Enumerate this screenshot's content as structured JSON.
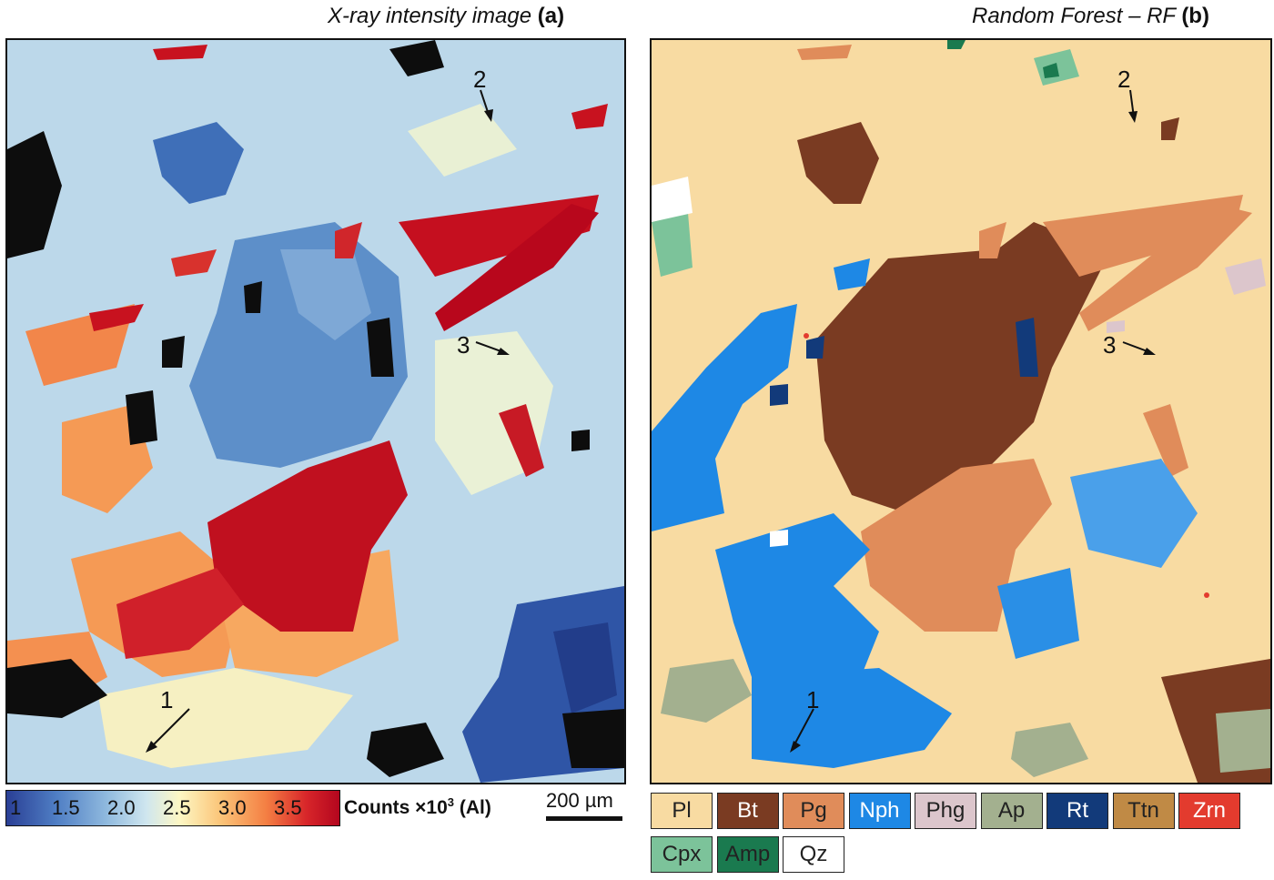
{
  "panel_a": {
    "title_text": "X-ray intensity image",
    "letter": "(a)",
    "annotations": [
      "1",
      "2",
      "3"
    ],
    "colorbar": {
      "ticks": [
        "1",
        "1.5",
        "2.0",
        "2.5",
        "3.0",
        "3.5"
      ],
      "label_main": "Counts ×10",
      "label_exp": "3",
      "label_tail": " (Al)"
    },
    "scale_label": "200 µm"
  },
  "panel_b": {
    "title_text": "Random Forest – RF",
    "letter": "(b)",
    "annotations": [
      "1",
      "2",
      "3"
    ],
    "legend": [
      {
        "label": "Pl",
        "color": "#f8dba2",
        "text_color": "#222222"
      },
      {
        "label": "Bt",
        "color": "#7a3b22",
        "text_color": "#ffffff"
      },
      {
        "label": "Pg",
        "color": "#e08c5a",
        "text_color": "#222222"
      },
      {
        "label": "Nph",
        "color": "#1e88e5",
        "text_color": "#ffffff"
      },
      {
        "label": "Phg",
        "color": "#dcc6cc",
        "text_color": "#222222"
      },
      {
        "label": "Ap",
        "color": "#a3b08f",
        "text_color": "#222222"
      },
      {
        "label": "Rt",
        "color": "#123a7a",
        "text_color": "#ffffff"
      },
      {
        "label": "Ttn",
        "color": "#c08a45",
        "text_color": "#222222"
      },
      {
        "label": "Zrn",
        "color": "#e33b2e",
        "text_color": "#ffffff"
      },
      {
        "label": "Cpx",
        "color": "#7cc39a",
        "text_color": "#222222"
      },
      {
        "label": "Amp",
        "color": "#1a7a4f",
        "text_color": "#222222"
      },
      {
        "label": "Qz",
        "color": "#ffffff",
        "text_color": "#222222"
      }
    ]
  }
}
